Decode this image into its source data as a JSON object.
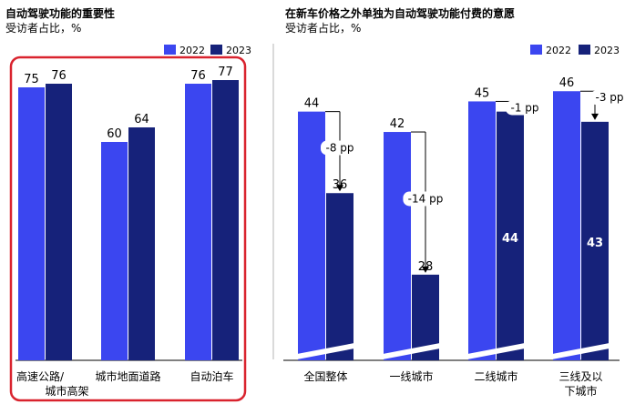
{
  "chart_data": [
    {
      "type": "bar",
      "title": "自动驾驶功能的重要性",
      "subtitle": "受访者占比，%",
      "categories": [
        [
          "高速公路/",
          "城市高架"
        ],
        [
          "城市地面道路"
        ],
        [
          "自动泊车"
        ]
      ],
      "series": [
        {
          "name": "2022",
          "values": [
            75,
            60,
            76
          ]
        },
        {
          "name": "2023",
          "values": [
            76,
            64,
            77
          ]
        }
      ],
      "legend": "top-right",
      "grid": false,
      "highlighted_box": true
    },
    {
      "type": "bar",
      "title": "在新车价格之外单独为自动驾驶功能付费的意愿",
      "subtitle": "受访者占比，%",
      "categories": [
        [
          "全国整体"
        ],
        [
          "一线城市"
        ],
        [
          "二线城市"
        ],
        [
          "三线及以",
          "下城市"
        ]
      ],
      "series": [
        {
          "name": "2022",
          "values": [
            44,
            42,
            45,
            46
          ]
        },
        {
          "name": "2023",
          "values": [
            36,
            28,
            44,
            43
          ]
        }
      ],
      "changes": [
        "-8 pp",
        "-14 pp",
        "-1 pp",
        "-3 pp"
      ],
      "legend": "top-right",
      "grid": false,
      "axis_break": true
    }
  ],
  "colors": {
    "c2022": "#3b46f0",
    "c2023": "#16227a",
    "highlight": "#d9232e",
    "divider": "#b5b5b5"
  }
}
